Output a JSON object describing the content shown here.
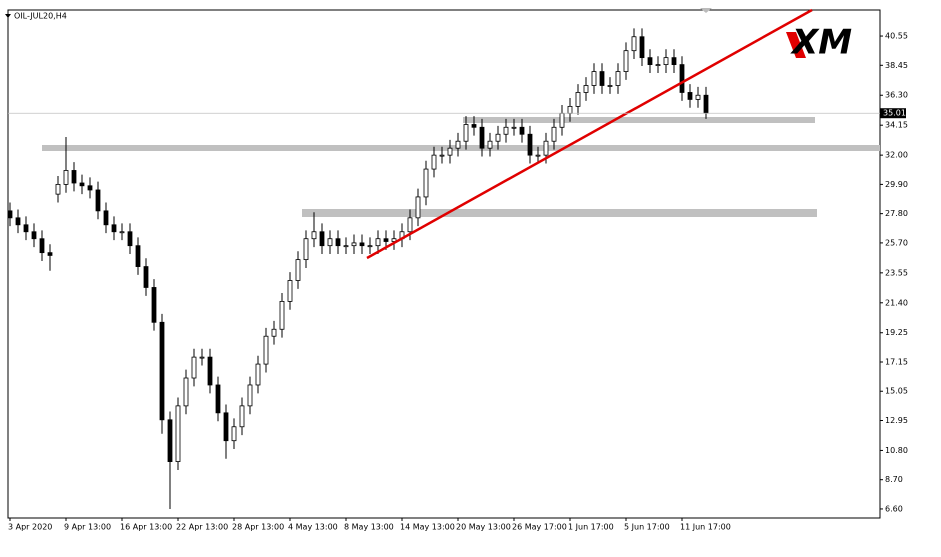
{
  "chart_data": {
    "type": "candlestick",
    "title": "OIL-JUL20,H4",
    "categories": [
      "3 Apr 2020",
      null,
      null,
      null,
      null,
      null,
      null,
      "9 Apr 13:00",
      null,
      null,
      null,
      null,
      null,
      null,
      "16 Apr 13:00",
      null,
      null,
      null,
      null,
      null,
      null,
      "22 Apr 13:00",
      null,
      null,
      null,
      null,
      null,
      null,
      "28 Apr 13:00",
      null,
      null,
      null,
      null,
      null,
      null,
      "4 May 13:00",
      null,
      null,
      null,
      null,
      null,
      null,
      "8 May 13:00",
      null,
      null,
      null,
      null,
      null,
      null,
      "14 May 13:00",
      null,
      null,
      null,
      null,
      null,
      null,
      "20 May 13:00",
      null,
      null,
      null,
      null,
      null,
      null,
      "26 May 17:00",
      null,
      null,
      null,
      null,
      null,
      null,
      "1 Jun 17:00",
      null,
      null,
      null,
      null,
      null,
      null,
      "5 Jun 17:00",
      null,
      null,
      null,
      null,
      null,
      null,
      "11 Jun 17:00",
      null,
      null,
      null
    ],
    "open": [
      28,
      27.5,
      27,
      26.5,
      26,
      25,
      29.2,
      29.9,
      30.9,
      30,
      29.8,
      29.5,
      28,
      27,
      26.5,
      26.5,
      25.5,
      24,
      22.5,
      20,
      13,
      10,
      14,
      16,
      17.5,
      17.5,
      15.5,
      13.5,
      11.5,
      12.5,
      14,
      15.5,
      17,
      19,
      19.5,
      21.5,
      23,
      24.5,
      26,
      26.5,
      25.5,
      26,
      25.5,
      25.5,
      25.7,
      25.5,
      25.5,
      26,
      25.8,
      26,
      26.5,
      27.5,
      29,
      31,
      32,
      32,
      32.5,
      33,
      34.2,
      34,
      32.5,
      33,
      33.5,
      34,
      34,
      33.5,
      32,
      32,
      33,
      34,
      35,
      35.5,
      36.5,
      37,
      38,
      37,
      37,
      38,
      39.5,
      40.5,
      39,
      38.5,
      38.5,
      39,
      38.5,
      36.5,
      36,
      36.3
    ],
    "high": [
      28.6,
      28.1,
      27.6,
      27.1,
      26.6,
      25.6,
      30.5,
      33.3,
      31.5,
      30.6,
      30.4,
      30.1,
      28.6,
      27.6,
      27.1,
      27.1,
      26.1,
      24.6,
      23.1,
      20.6,
      13.6,
      14.6,
      16.6,
      18.1,
      18.1,
      18.1,
      16.1,
      14.1,
      13.1,
      14.6,
      16.1,
      17.6,
      19.6,
      20.1,
      22.1,
      23.6,
      25.1,
      26.6,
      27.9,
      27.1,
      26.6,
      26.6,
      26.1,
      26.3,
      26.3,
      26.1,
      26.6,
      26.6,
      26.6,
      27.1,
      28.1,
      29.6,
      31.6,
      32.6,
      32.6,
      33.1,
      33.6,
      34.8,
      34.8,
      34.6,
      33.6,
      34.1,
      34.6,
      34.6,
      34.6,
      34.1,
      32.6,
      33.6,
      34.6,
      35.6,
      36.1,
      37.1,
      37.6,
      38.6,
      38.6,
      37.6,
      38.6,
      40.1,
      41.1,
      41.1,
      39.6,
      39.1,
      39.6,
      39.6,
      39.1,
      37.1,
      36.9,
      36.9
    ],
    "low": [
      26.9,
      26.4,
      25.9,
      25.4,
      24.4,
      23.7,
      28.6,
      29.3,
      29.4,
      29.2,
      28.9,
      27.4,
      26.4,
      25.9,
      25.9,
      24.9,
      23.4,
      21.9,
      19.4,
      12,
      6.6,
      9.4,
      13.4,
      15.4,
      16.9,
      14.9,
      12.9,
      10.2,
      10.9,
      11.9,
      13.4,
      14.9,
      16.4,
      18.4,
      18.9,
      20.9,
      22.4,
      23.9,
      25.4,
      24.9,
      24.9,
      24.9,
      24.9,
      24.9,
      24.9,
      24.9,
      24.9,
      25.2,
      25.2,
      25.4,
      25.9,
      26.9,
      28.4,
      30.4,
      31.4,
      31.4,
      31.9,
      32.4,
      33.4,
      31.9,
      31.9,
      32.4,
      32.9,
      33.4,
      32.9,
      31.4,
      31.4,
      31.4,
      32.4,
      33.4,
      34.4,
      34.9,
      35.9,
      36.4,
      36.4,
      36.4,
      36.4,
      37.4,
      38.9,
      38.4,
      37.9,
      37.9,
      37.9,
      37.9,
      35.9,
      35.4,
      35.4,
      34.6
    ],
    "close": [
      27.5,
      27,
      26.5,
      26,
      25,
      24.8,
      29.9,
      30.9,
      30,
      29.8,
      29.5,
      28,
      27,
      26.5,
      26.5,
      25.5,
      24,
      22.5,
      20,
      13,
      10,
      14,
      16,
      17.5,
      17.5,
      15.5,
      13.5,
      11.5,
      12.5,
      14,
      15.5,
      17,
      19,
      19.5,
      21.5,
      23,
      24.5,
      26,
      26.5,
      25.5,
      26,
      25.5,
      25.5,
      25.7,
      25.5,
      25.5,
      26,
      25.8,
      26,
      26.5,
      27.5,
      29,
      31,
      32,
      32,
      32.5,
      33,
      34.2,
      34,
      32.5,
      33,
      33.5,
      34,
      34,
      33.5,
      32,
      32,
      33,
      34,
      35,
      35.5,
      36.5,
      37,
      38,
      37,
      37,
      38,
      39.5,
      40.5,
      39,
      38.5,
      38.5,
      39,
      38.5,
      36.5,
      36,
      36.3,
      35.01
    ],
    "up_color": "#ffffff",
    "down_color": "#000000",
    "ylim": [
      5.95,
      42.42
    ],
    "yticks": [
      {
        "value": 6.6,
        "label": "6.60"
      },
      {
        "value": 8.7,
        "label": "8.70"
      },
      {
        "value": 10.8,
        "label": "10.80"
      },
      12.95,
      15.05,
      17.15,
      19.25,
      {
        "value": 21.4,
        "label": "21.40"
      },
      23.55,
      {
        "value": 25.7,
        "label": "25.70"
      },
      {
        "value": 27.8,
        "label": "27.80"
      },
      {
        "value": 29.9,
        "label": "29.90"
      },
      {
        "value": 32,
        "label": "32.00"
      },
      34.15,
      {
        "value": 36.3,
        "label": "36.30"
      },
      38.45,
      40.55
    ],
    "current_price": 35.01
  },
  "logo": "XM"
}
